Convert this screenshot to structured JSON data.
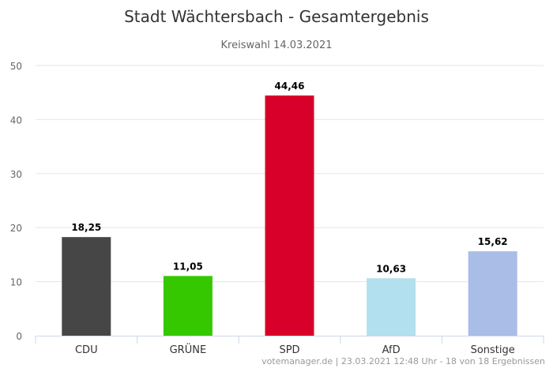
{
  "chart_data": {
    "type": "bar",
    "title": "Stadt Wächtersbach - Gesamtergebnis",
    "subtitle": "Kreiswahl 14.03.2021",
    "categories": [
      "CDU",
      "GRÜNE",
      "SPD",
      "AfD",
      "Sonstige"
    ],
    "values": [
      18.25,
      11.05,
      44.46,
      10.63,
      15.62
    ],
    "data_labels": [
      "18,25",
      "11,05",
      "44,46",
      "10,63",
      "15,62"
    ],
    "colors": [
      "#464646",
      "#35c800",
      "#d8002a",
      "#b2e0ee",
      "#aabde6"
    ],
    "ylim": [
      0,
      50
    ],
    "yticks": [
      0,
      10,
      20,
      30,
      40,
      50
    ],
    "grid": true,
    "xlabel": "",
    "ylabel": "",
    "credits": "votemanager.de | 23.03.2021 12:48 Uhr - 18 von 18 Ergebnissen"
  }
}
